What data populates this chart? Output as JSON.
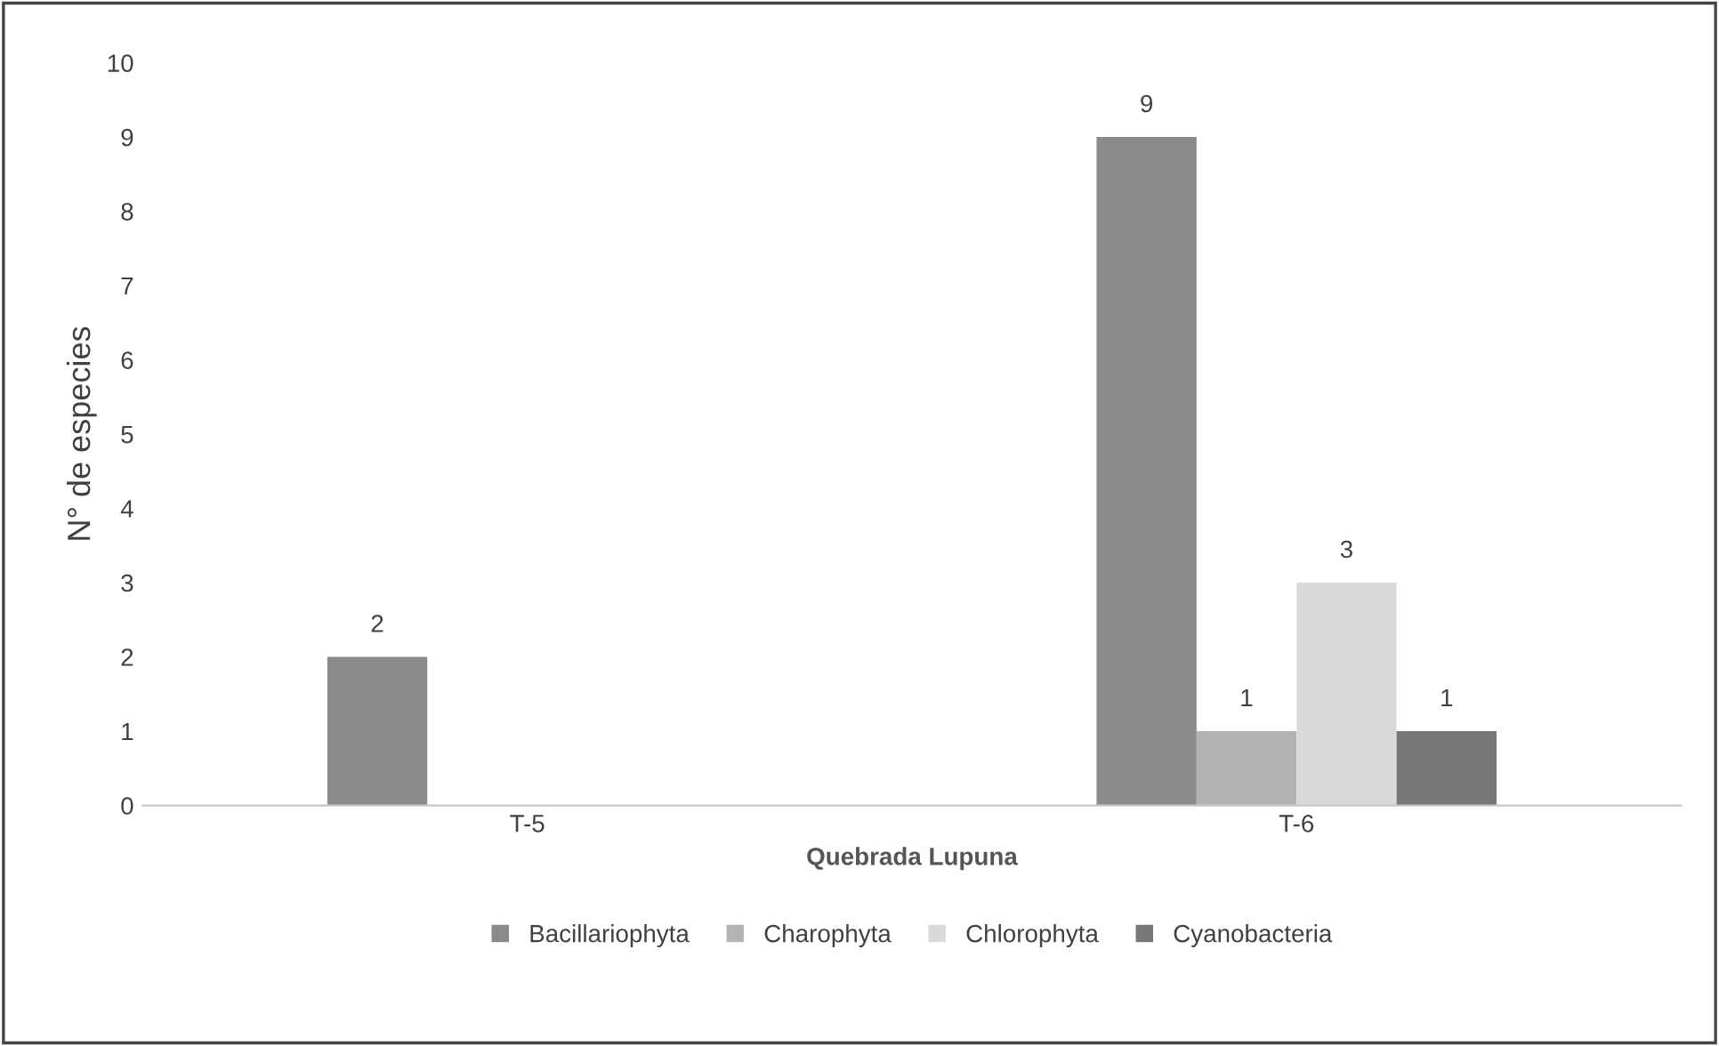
{
  "chart_data": {
    "type": "bar",
    "xlabel": "Quebrada Lupuna",
    "ylabel": "N° de especies",
    "categories": [
      "T-5",
      "T-6"
    ],
    "series": [
      {
        "name": "Bacillariophyta",
        "color": "#8a8a8a",
        "values": [
          2,
          9
        ],
        "value_labels": [
          "2",
          "9"
        ]
      },
      {
        "name": "Charophyta",
        "color": "#b4b4b4",
        "values": [
          0,
          1
        ],
        "value_labels": [
          null,
          "1"
        ]
      },
      {
        "name": "Chlorophyta",
        "color": "#dadada",
        "values": [
          0,
          3
        ],
        "value_labels": [
          null,
          "3"
        ]
      },
      {
        "name": "Cyanobacteria",
        "color": "#777777",
        "values": [
          0,
          1
        ],
        "value_labels": [
          null,
          "1"
        ]
      }
    ],
    "ylim": [
      0,
      10
    ],
    "yticks": [
      0,
      1,
      2,
      3,
      4,
      5,
      6,
      7,
      8,
      9,
      10
    ],
    "grid": false,
    "legend": "bottom"
  }
}
